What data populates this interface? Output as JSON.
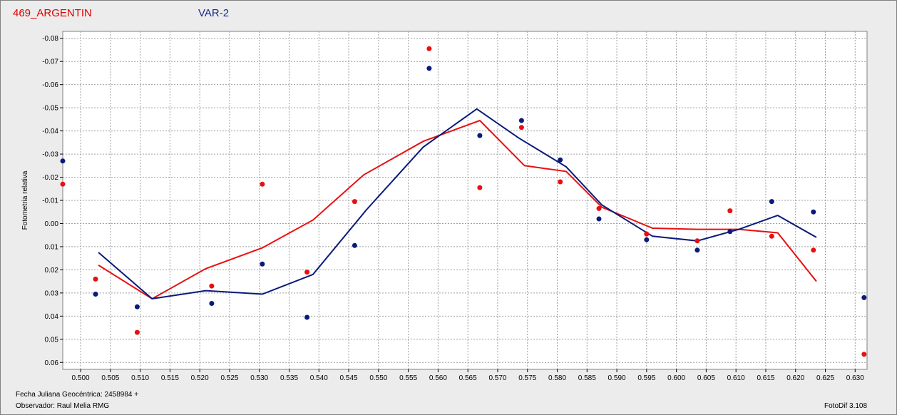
{
  "header": {
    "object_name": "469_ARGENTIN",
    "variable_label": "VAR-2"
  },
  "footer": {
    "date_label": "Fecha Juliana Geocéntrica: 2458984 +",
    "observer_label": "Observador: Raul Melia RMG",
    "software_label": "FotoDif 3.108"
  },
  "colors": {
    "red": "#e81010",
    "blue": "#0a1a7a",
    "grid": "#a0a0a0",
    "plot_bg": "#ffffff"
  },
  "chart_data": {
    "type": "scatter",
    "ylabel": "Fotometria relativa",
    "xlim": [
      0.497,
      0.632
    ],
    "ylim": [
      0.063,
      -0.083
    ],
    "y_inverted": true,
    "grid": true,
    "x_ticks": [
      "0.500",
      "0.505",
      "0.510",
      "0.515",
      "0.520",
      "0.525",
      "0.530",
      "0.535",
      "0.540",
      "0.545",
      "0.550",
      "0.555",
      "0.560",
      "0.565",
      "0.570",
      "0.575",
      "0.580",
      "0.585",
      "0.590",
      "0.595",
      "0.600",
      "0.605",
      "0.610",
      "0.615",
      "0.620",
      "0.625",
      "0.630"
    ],
    "y_ticks": [
      "-0.08",
      "-0.07",
      "-0.06",
      "-0.05",
      "-0.04",
      "-0.03",
      "-0.02",
      "-0.01",
      "0.00",
      "0.01",
      "0.02",
      "0.03",
      "0.04",
      "0.05",
      "0.06"
    ],
    "series": [
      {
        "color": "red",
        "points": [
          [
            0.497,
            -0.017
          ],
          [
            0.5025,
            0.024
          ],
          [
            0.5095,
            0.047
          ],
          [
            0.522,
            0.027
          ],
          [
            0.5305,
            -0.017
          ],
          [
            0.538,
            0.021
          ],
          [
            0.546,
            -0.0095
          ],
          [
            0.5585,
            -0.0755
          ],
          [
            0.567,
            -0.0155
          ],
          [
            0.574,
            -0.0415
          ],
          [
            0.5805,
            -0.018
          ],
          [
            0.587,
            -0.0065
          ],
          [
            0.595,
            0.0045
          ],
          [
            0.6035,
            0.0075
          ],
          [
            0.609,
            -0.0055
          ],
          [
            0.616,
            0.0055
          ],
          [
            0.623,
            0.0115
          ],
          [
            0.6315,
            0.0565
          ]
        ],
        "line": [
          [
            0.503,
            0.018
          ],
          [
            0.512,
            0.0325
          ],
          [
            0.521,
            0.0195
          ],
          [
            0.5305,
            0.0105
          ],
          [
            0.539,
            -0.0015
          ],
          [
            0.5475,
            -0.021
          ],
          [
            0.5575,
            -0.0355
          ],
          [
            0.567,
            -0.0445
          ],
          [
            0.5745,
            -0.025
          ],
          [
            0.5815,
            -0.0225
          ],
          [
            0.5875,
            -0.007
          ],
          [
            0.596,
            0.002
          ],
          [
            0.6035,
            0.0025
          ],
          [
            0.6105,
            0.0025
          ],
          [
            0.617,
            0.004
          ],
          [
            0.6235,
            0.025
          ]
        ]
      },
      {
        "color": "blue",
        "points": [
          [
            0.497,
            -0.027
          ],
          [
            0.5025,
            0.0305
          ],
          [
            0.5095,
            0.036
          ],
          [
            0.522,
            0.0345
          ],
          [
            0.5305,
            0.0175
          ],
          [
            0.538,
            0.0405
          ],
          [
            0.546,
            0.0095
          ],
          [
            0.5585,
            -0.067
          ],
          [
            0.567,
            -0.038
          ],
          [
            0.574,
            -0.0445
          ],
          [
            0.5805,
            -0.0275
          ],
          [
            0.587,
            -0.002
          ],
          [
            0.595,
            0.007
          ],
          [
            0.6035,
            0.0115
          ],
          [
            0.609,
            0.0035
          ],
          [
            0.616,
            -0.0095
          ],
          [
            0.623,
            -0.005
          ],
          [
            0.6315,
            0.032
          ]
        ],
        "line": [
          [
            0.503,
            0.0125
          ],
          [
            0.512,
            0.0325
          ],
          [
            0.521,
            0.029
          ],
          [
            0.5305,
            0.0305
          ],
          [
            0.539,
            0.022
          ],
          [
            0.548,
            -0.006
          ],
          [
            0.5575,
            -0.033
          ],
          [
            0.5665,
            -0.0495
          ],
          [
            0.5735,
            -0.037
          ],
          [
            0.5815,
            -0.0245
          ],
          [
            0.5875,
            -0.008
          ],
          [
            0.596,
            0.0055
          ],
          [
            0.6035,
            0.0075
          ],
          [
            0.6105,
            0.0025
          ],
          [
            0.617,
            -0.0035
          ],
          [
            0.6235,
            0.006
          ]
        ]
      }
    ]
  }
}
